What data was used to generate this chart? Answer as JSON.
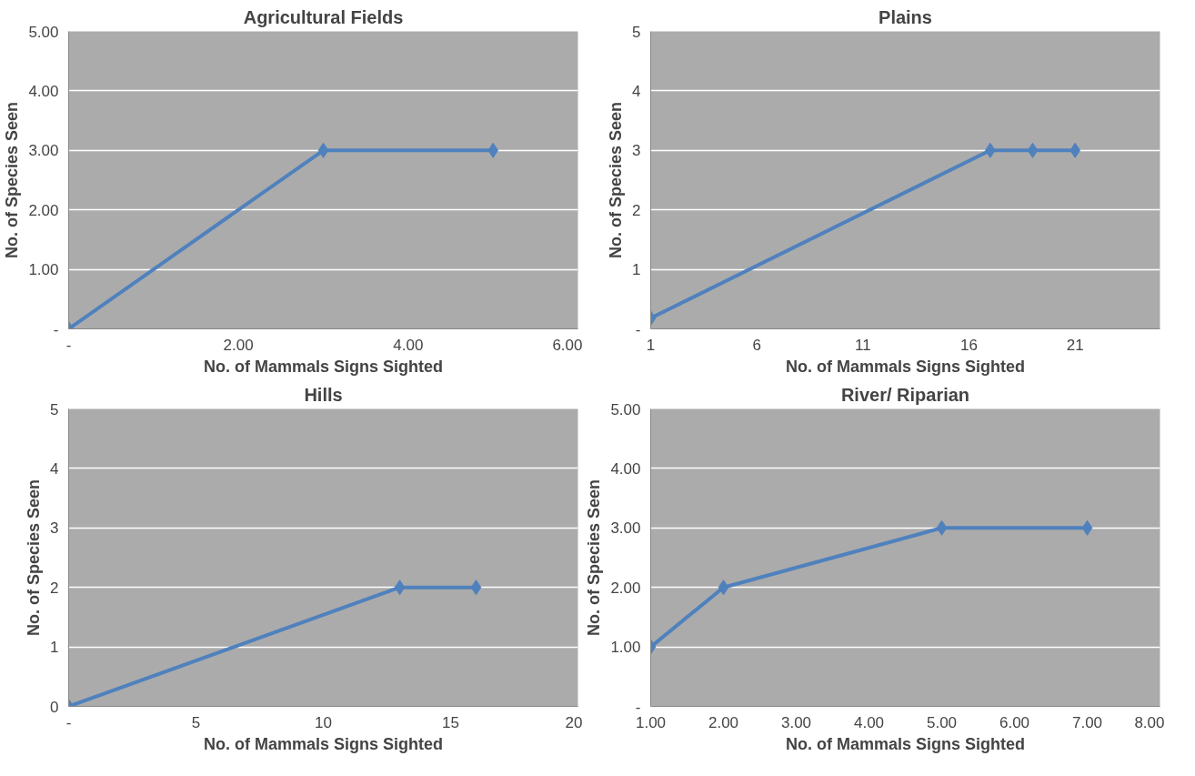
{
  "chart_data": [
    {
      "type": "line",
      "title": "Agricultural Fields",
      "xlabel": "No. of Mammals Signs Sighted",
      "ylabel": "No. of Species Seen",
      "x": [
        0,
        3,
        5
      ],
      "series": [
        {
          "color": "#4f81bd",
          "values": [
            0,
            3,
            3
          ]
        }
      ],
      "xlim": [
        0,
        6
      ],
      "xticks": [
        {
          "value": 0,
          "label": "-"
        },
        {
          "value": 2,
          "label": "2.00"
        },
        {
          "value": 4,
          "label": "4.00"
        },
        {
          "value": 6,
          "label": "6.00"
        }
      ],
      "ylim": [
        0,
        5
      ],
      "yticks": [
        {
          "value": 0,
          "label": "-"
        },
        {
          "value": 1,
          "label": "1.00"
        },
        {
          "value": 2,
          "label": "2.00"
        },
        {
          "value": 3,
          "label": "3.00"
        },
        {
          "value": 4,
          "label": "4.00"
        },
        {
          "value": 5,
          "label": "5.00"
        }
      ],
      "grid": "y",
      "marker": "diamond"
    },
    {
      "type": "line",
      "title": "Plains",
      "xlabel": "No. of Mammals Signs Sighted",
      "ylabel": "No. of Species Seen",
      "x": [
        1,
        17,
        19,
        21
      ],
      "series": [
        {
          "color": "#4f81bd",
          "values": [
            0.18,
            3,
            3,
            3
          ]
        }
      ],
      "xlim": [
        1,
        25
      ],
      "xticks": [
        1,
        6,
        11,
        16,
        21
      ],
      "ylim": [
        0,
        5
      ],
      "yticks": [
        {
          "value": 0,
          "label": "-"
        },
        1,
        2,
        3,
        4,
        5
      ],
      "grid": "y",
      "marker": "diamond"
    },
    {
      "type": "line",
      "title": "Hills",
      "xlabel": "No. of Mammals Signs Sighted",
      "ylabel": "No. of Species Seen",
      "x": [
        0,
        13,
        16
      ],
      "series": [
        {
          "color": "#4f81bd",
          "values": [
            0,
            2,
            2
          ]
        }
      ],
      "xlim": [
        0,
        20
      ],
      "xticks": [
        {
          "value": 0,
          "label": "-"
        },
        5,
        10,
        15,
        20
      ],
      "ylim": [
        0,
        5
      ],
      "yticks": [
        0,
        1,
        2,
        3,
        4,
        5
      ],
      "grid": "y",
      "marker": "diamond"
    },
    {
      "type": "line",
      "title": "River/ Riparian",
      "xlabel": "No. of Mammals Signs Sighted",
      "ylabel": "No. of Species Seen",
      "x": [
        1,
        2,
        5,
        7
      ],
      "series": [
        {
          "color": "#4f81bd",
          "values": [
            1,
            2,
            3,
            3
          ]
        }
      ],
      "xlim": [
        1,
        8
      ],
      "xticks": [
        {
          "value": 1,
          "label": "1.00"
        },
        {
          "value": 2,
          "label": "2.00"
        },
        {
          "value": 3,
          "label": "3.00"
        },
        {
          "value": 4,
          "label": "4.00"
        },
        {
          "value": 5,
          "label": "5.00"
        },
        {
          "value": 6,
          "label": "6.00"
        },
        {
          "value": 7,
          "label": "7.00"
        },
        {
          "value": 8,
          "label": "8.00"
        }
      ],
      "ylim": [
        0,
        5
      ],
      "yticks": [
        {
          "value": 0,
          "label": "-"
        },
        {
          "value": 1,
          "label": "1.00"
        },
        {
          "value": 2,
          "label": "2.00"
        },
        {
          "value": 3,
          "label": "3.00"
        },
        {
          "value": 4,
          "label": "4.00"
        },
        {
          "value": 5,
          "label": "5.00"
        }
      ],
      "grid": "y",
      "marker": "diamond"
    }
  ]
}
